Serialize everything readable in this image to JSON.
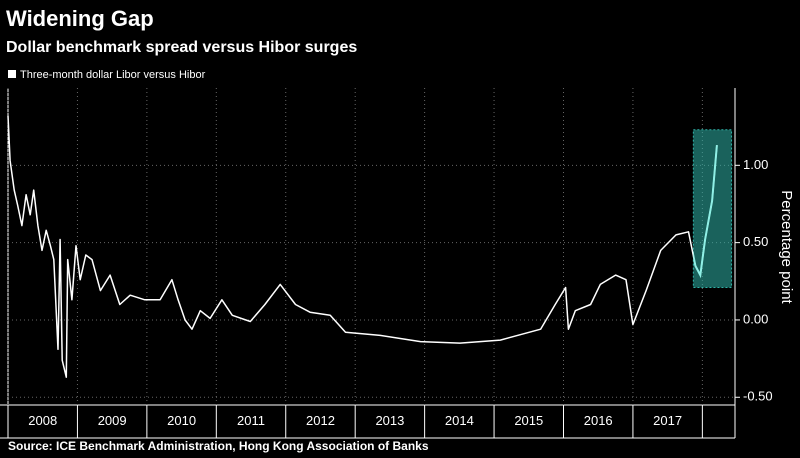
{
  "chart_data": {
    "type": "line",
    "title": "Widening Gap",
    "subtitle": "Dollar benchmark spread versus Hibor surges",
    "ylabel": "Percentage point",
    "source": "Source: ICE Benchmark Administration, Hong Kong Association of Banks",
    "xlim": [
      2008,
      2018.47
    ],
    "xticks": [
      2008,
      2009,
      2010,
      2011,
      2012,
      2013,
      2014,
      2015,
      2016,
      2017,
      2018
    ],
    "year_labels": [
      "2008",
      "2009",
      "2010",
      "2011",
      "2012",
      "2013",
      "2014",
      "2015",
      "2016",
      "2017"
    ],
    "ylim": [
      -0.55,
      1.5
    ],
    "yticks": [
      {
        "value": 1,
        "label": "1.00"
      },
      {
        "value": 0.5,
        "label": "0.50"
      },
      {
        "value": 0,
        "label": "0.00"
      },
      {
        "value": -0.5,
        "label": "-0.50"
      }
    ],
    "grid": true,
    "highlight": {
      "x": [
        2017.87,
        2018.42
      ],
      "y": [
        0.21,
        1.23
      ],
      "color": "#2fb3a8"
    },
    "series": [
      {
        "name": "Three-month dollar Libor versus Hibor",
        "color": "#ffffff",
        "highlight_color": "#8ff0e6",
        "x": [
          2008.0,
          2008.03,
          2008.09,
          2008.14,
          2008.2,
          2008.26,
          2008.32,
          2008.37,
          2008.43,
          2008.49,
          2008.55,
          2008.61,
          2008.66,
          2008.72,
          2008.75,
          2008.78,
          2008.84,
          2008.86,
          2008.92,
          2008.98,
          2009.04,
          2009.12,
          2009.21,
          2009.33,
          2009.47,
          2009.61,
          2009.76,
          2009.97,
          2010.19,
          2010.36,
          2010.45,
          2010.55,
          2010.65,
          2010.77,
          2010.91,
          2011.08,
          2011.23,
          2011.49,
          2011.7,
          2011.92,
          2012.14,
          2012.35,
          2012.64,
          2012.86,
          2013.36,
          2013.94,
          2014.51,
          2015.09,
          2015.67,
          2015.88,
          2016.03,
          2016.07,
          2016.17,
          2016.39,
          2016.53,
          2016.75,
          2016.9,
          2017.0,
          2017.19,
          2017.4,
          2017.62,
          2017.8,
          2017.9,
          2017.97,
          2018.04,
          2018.14,
          2018.21
        ],
        "values": [
          1.32,
          1.03,
          0.84,
          0.74,
          0.61,
          0.81,
          0.68,
          0.84,
          0.61,
          0.45,
          0.58,
          0.48,
          0.39,
          -0.19,
          0.52,
          -0.26,
          -0.37,
          0.39,
          0.13,
          0.48,
          0.26,
          0.42,
          0.39,
          0.19,
          0.29,
          0.1,
          0.16,
          0.13,
          0.13,
          0.26,
          0.13,
          0.0,
          -0.06,
          0.06,
          0.01,
          0.13,
          0.03,
          -0.01,
          0.1,
          0.23,
          0.1,
          0.05,
          0.03,
          -0.08,
          -0.1,
          -0.14,
          -0.15,
          -0.13,
          -0.06,
          0.1,
          0.21,
          -0.06,
          0.06,
          0.1,
          0.23,
          0.29,
          0.26,
          -0.03,
          0.19,
          0.45,
          0.55,
          0.57,
          0.35,
          0.29,
          0.52,
          0.77,
          1.13
        ]
      }
    ]
  }
}
